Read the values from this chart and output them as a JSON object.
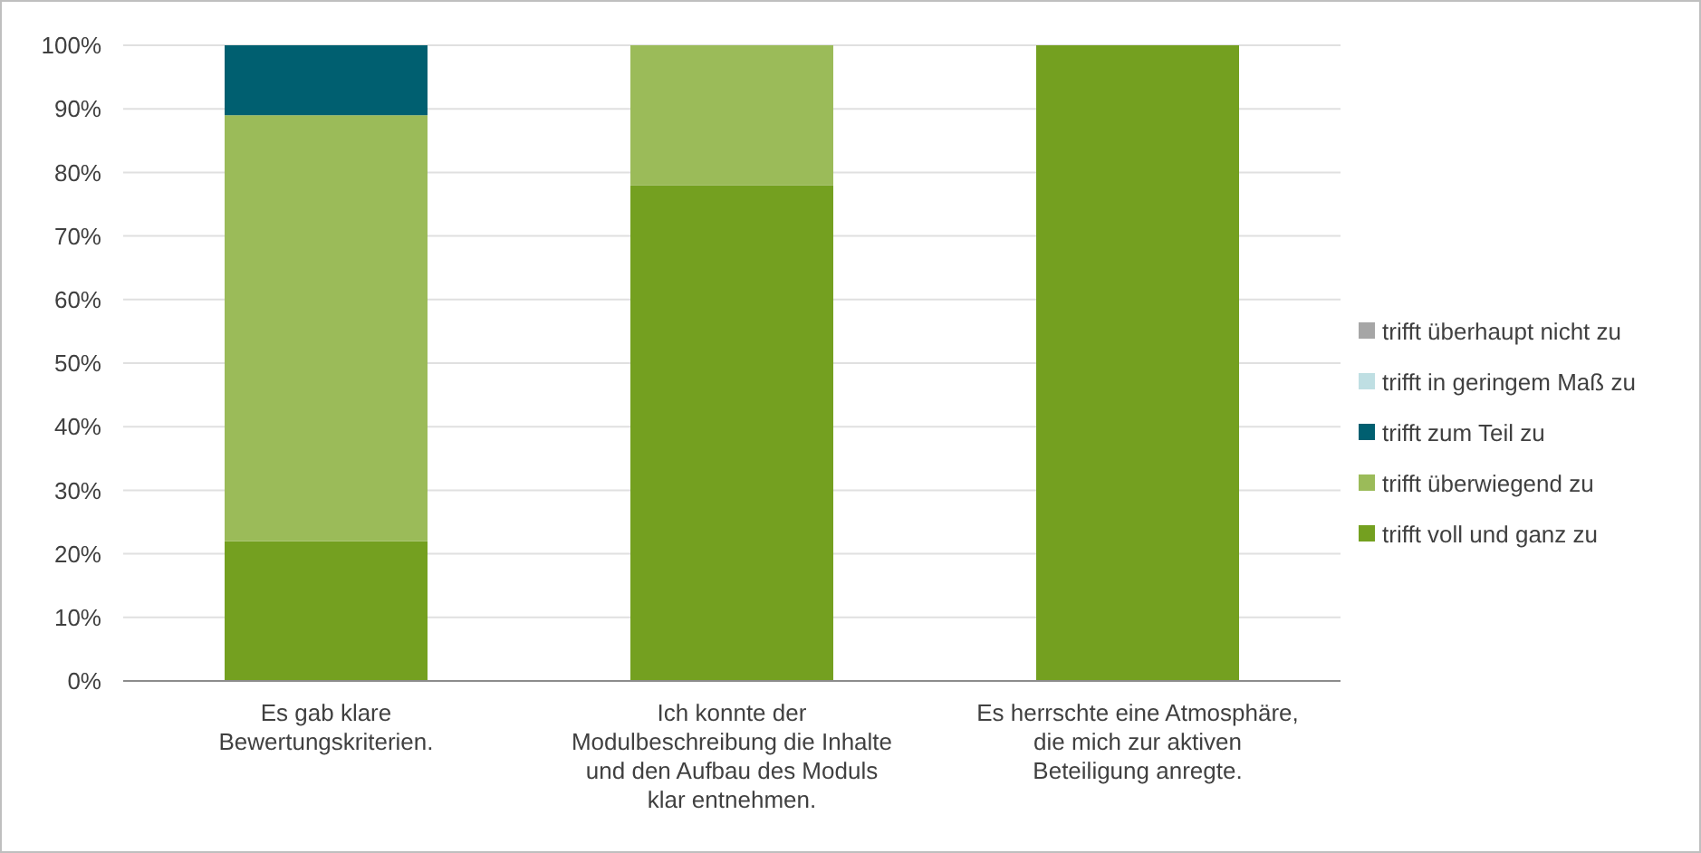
{
  "chart_data": {
    "type": "bar",
    "stacked": true,
    "categories": [
      "Es gab klare Bewertungskriterien.",
      "Ich konnte der Modulbeschreibung die Inhalte und den Aufbau des Moduls klar entnehmen.",
      "Es herrschte eine Atmosphäre, die mich zur aktiven Beteiligung anregte."
    ],
    "series": [
      {
        "name": "trifft voll und ganz zu",
        "color": "#74a020",
        "values": [
          22,
          78,
          100
        ]
      },
      {
        "name": "trifft überwiegend zu",
        "color": "#9bbb59",
        "values": [
          67,
          22,
          0
        ]
      },
      {
        "name": "trifft zum Teil zu",
        "color": "#005f70",
        "values": [
          11,
          0,
          0
        ]
      },
      {
        "name": "trifft in geringem Maß zu",
        "color": "#bfdfe3",
        "values": [
          0,
          0,
          0
        ]
      },
      {
        "name": "trifft überhaupt nicht zu",
        "color": "#a6a6a6",
        "values": [
          0,
          0,
          0
        ]
      }
    ],
    "ylim": [
      0,
      100
    ],
    "yticks": [
      {
        "value": 0,
        "label": "0%"
      },
      {
        "value": 10,
        "label": "10%"
      },
      {
        "value": 20,
        "label": "20%"
      },
      {
        "value": 30,
        "label": "30%"
      },
      {
        "value": 40,
        "label": "40%"
      },
      {
        "value": 50,
        "label": "50%"
      },
      {
        "value": 60,
        "label": "60%"
      },
      {
        "value": 70,
        "label": "70%"
      },
      {
        "value": 80,
        "label": "80%"
      },
      {
        "value": 90,
        "label": "90%"
      },
      {
        "value": 100,
        "label": "100%"
      }
    ],
    "grid": "y",
    "legend": "right"
  }
}
